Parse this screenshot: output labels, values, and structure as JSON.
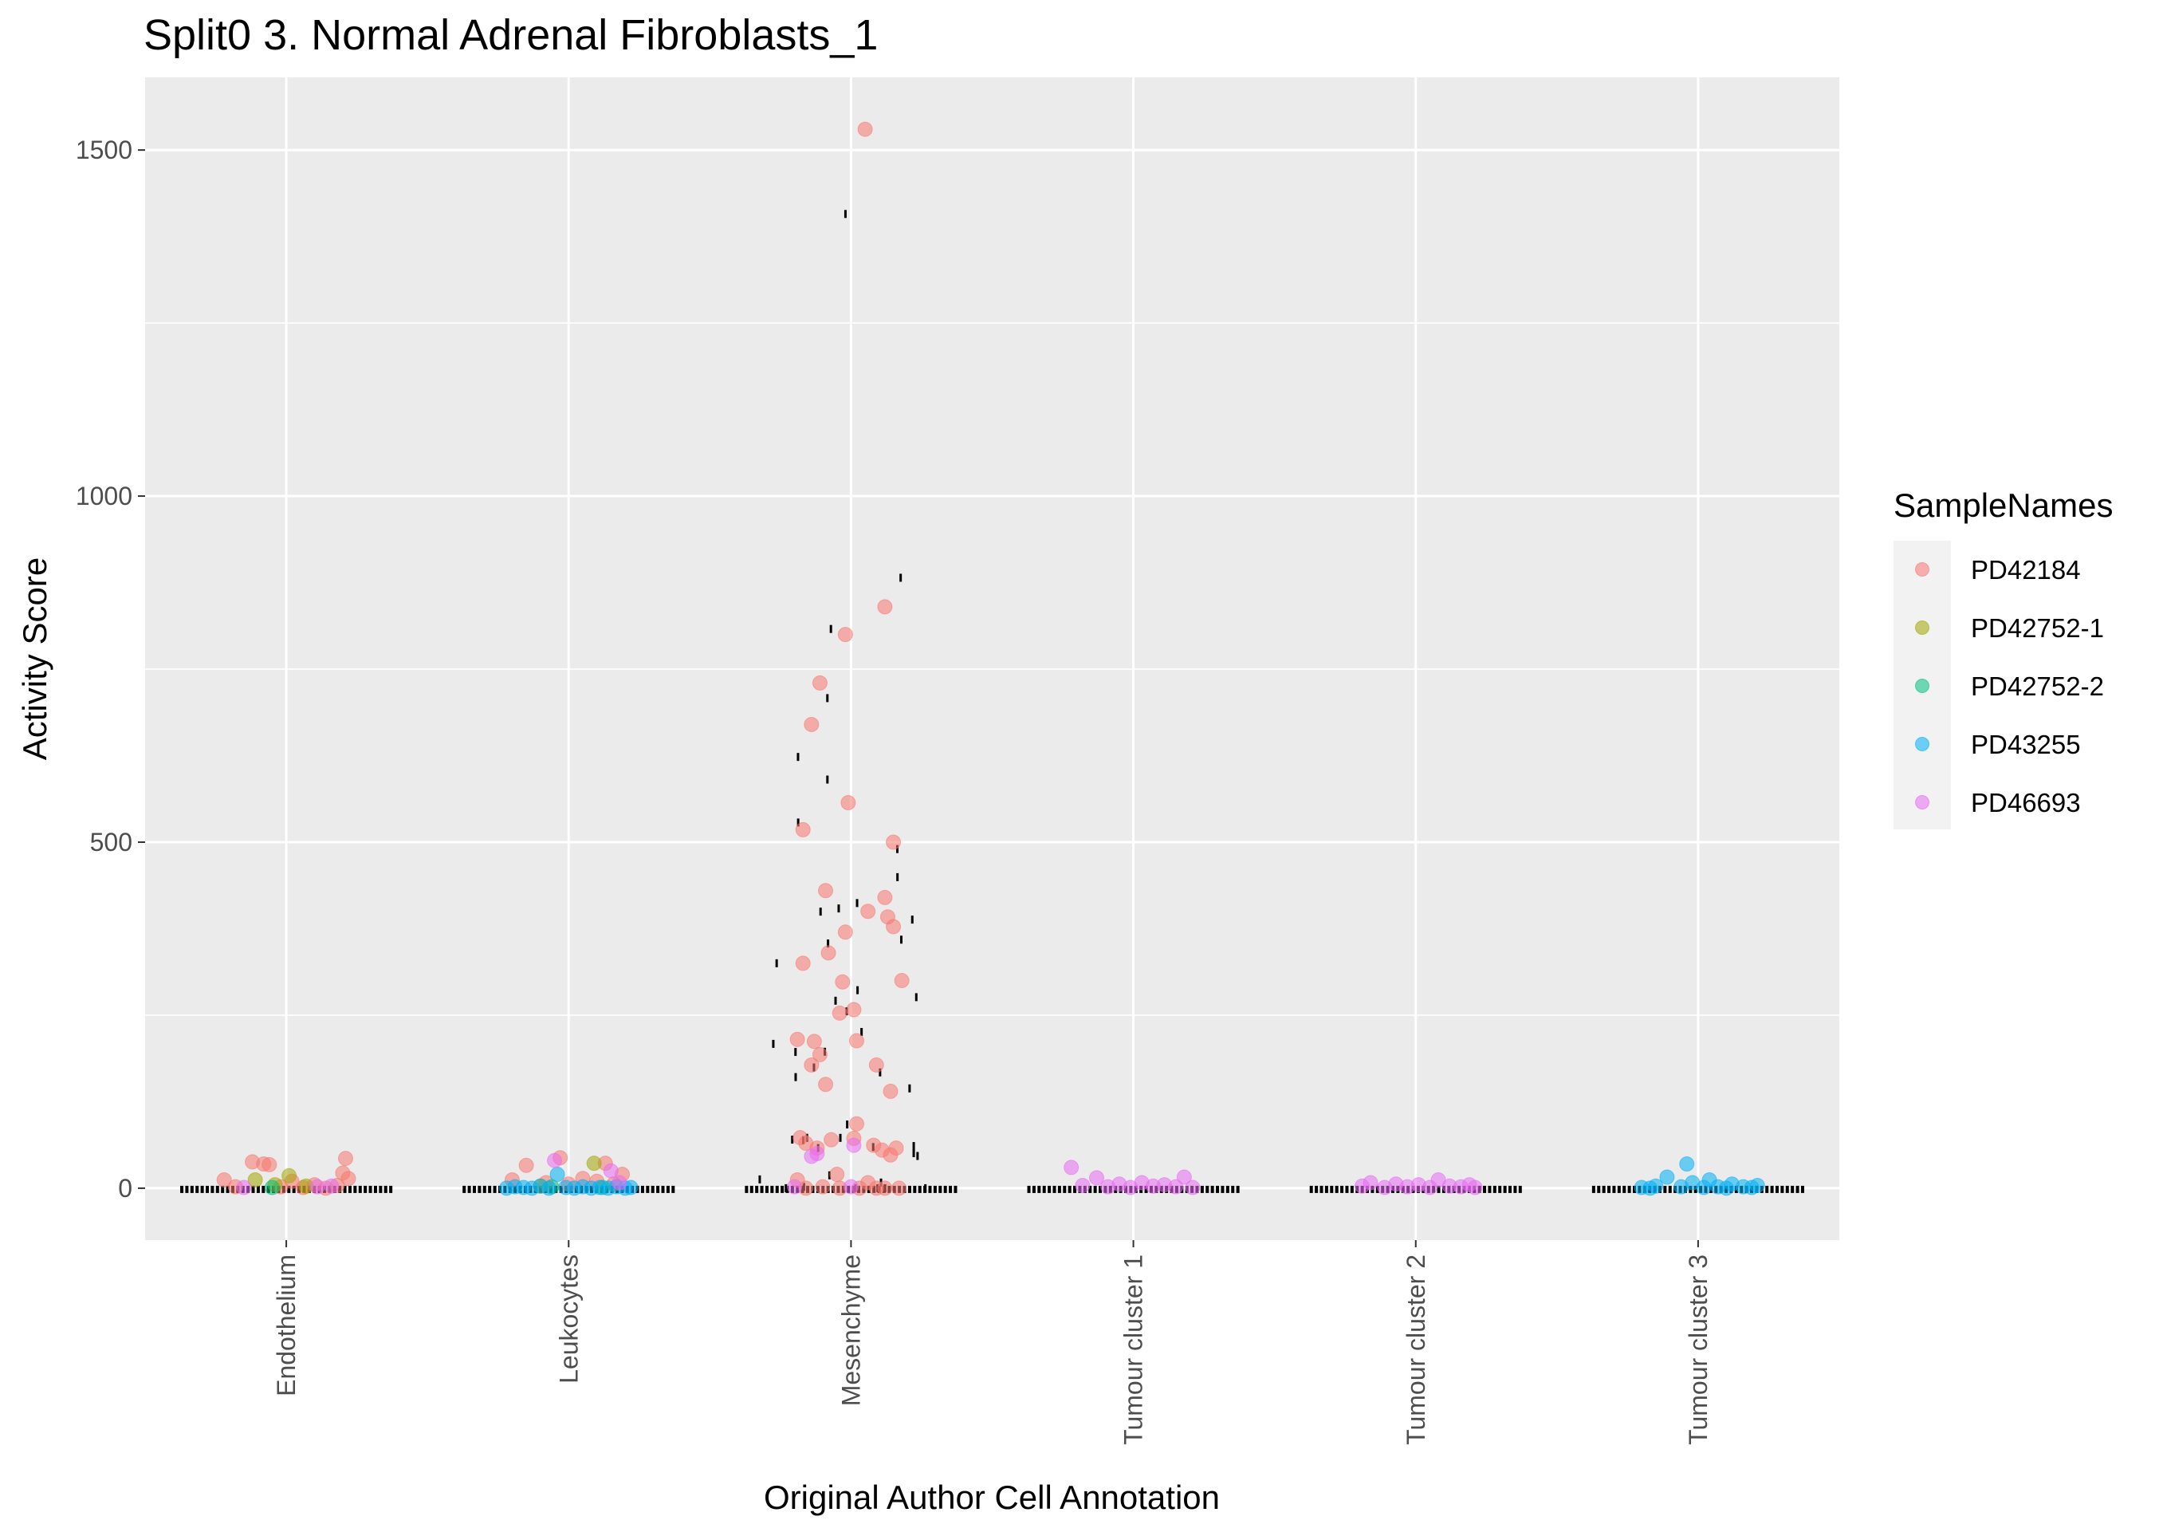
{
  "chart_data": {
    "type": "scatter",
    "title": "Split0 3. Normal Adrenal Fibroblasts_1",
    "xlabel": "Original Author Cell Annotation",
    "ylabel": "Activity Score",
    "categories": [
      "Endothelium",
      "Leukocytes",
      "Mesenchyme",
      "Tumour cluster 1",
      "Tumour cluster 2",
      "Tumour cluster 3"
    ],
    "ylim": [
      -75,
      1605
    ],
    "yticks": [
      0,
      500,
      1000,
      1500
    ],
    "grid": true,
    "legend": {
      "title": "SampleNames",
      "placement": "right",
      "entries": [
        "PD42184",
        "PD42752-1",
        "PD42752-2",
        "PD43255",
        "PD46693"
      ]
    },
    "colors": {
      "PD42184": "#F8766D",
      "PD42752-1": "#A3A500",
      "PD42752-2": "#00BF7D",
      "PD43255": "#00B0F6",
      "PD46693": "#E76BF3",
      "panel_background": "#EBEBEB",
      "grid": "#FFFFFF"
    },
    "series": [
      {
        "name": "PD42184",
        "points": [
          [
            "Endothelium",
            -0.22,
            12
          ],
          [
            "Endothelium",
            -0.12,
            38
          ],
          [
            "Endothelium",
            -0.08,
            35
          ],
          [
            "Endothelium",
            -0.06,
            34
          ],
          [
            "Endothelium",
            0.02,
            10
          ],
          [
            "Endothelium",
            0.1,
            5
          ],
          [
            "Endothelium",
            0.18,
            4
          ],
          [
            "Endothelium",
            0.21,
            43
          ],
          [
            "Endothelium",
            0.2,
            22
          ],
          [
            "Endothelium",
            0.22,
            14
          ],
          [
            "Endothelium",
            -0.18,
            2
          ],
          [
            "Endothelium",
            -0.02,
            2
          ],
          [
            "Endothelium",
            0.06,
            1
          ],
          [
            "Endothelium",
            0.14,
            0
          ],
          [
            "Leukocytes",
            -0.15,
            33
          ],
          [
            "Leukocytes",
            -0.03,
            44
          ],
          [
            "Leukocytes",
            0.13,
            36
          ],
          [
            "Leukocytes",
            0.19,
            20
          ],
          [
            "Leukocytes",
            0.05,
            14
          ],
          [
            "Leukocytes",
            -0.2,
            12
          ],
          [
            "Leukocytes",
            -0.08,
            8
          ],
          [
            "Leukocytes",
            0.1,
            10
          ],
          [
            "Leukocytes",
            0.0,
            6
          ],
          [
            "Leukocytes",
            0.16,
            6
          ],
          [
            "Mesenchyme",
            0.05,
            1530
          ],
          [
            "Mesenchyme",
            0.12,
            840
          ],
          [
            "Mesenchyme",
            -0.02,
            800
          ],
          [
            "Mesenchyme",
            -0.11,
            730
          ],
          [
            "Mesenchyme",
            -0.14,
            670
          ],
          [
            "Mesenchyme",
            -0.01,
            557
          ],
          [
            "Mesenchyme",
            -0.17,
            518
          ],
          [
            "Mesenchyme",
            0.15,
            500
          ],
          [
            "Mesenchyme",
            -0.09,
            430
          ],
          [
            "Mesenchyme",
            0.12,
            420
          ],
          [
            "Mesenchyme",
            0.06,
            400
          ],
          [
            "Mesenchyme",
            0.13,
            392
          ],
          [
            "Mesenchyme",
            0.15,
            378
          ],
          [
            "Mesenchyme",
            -0.02,
            370
          ],
          [
            "Mesenchyme",
            -0.08,
            340
          ],
          [
            "Mesenchyme",
            -0.17,
            325
          ],
          [
            "Mesenchyme",
            -0.03,
            298
          ],
          [
            "Mesenchyme",
            0.18,
            300
          ],
          [
            "Mesenchyme",
            0.01,
            258
          ],
          [
            "Mesenchyme",
            -0.04,
            253
          ],
          [
            "Mesenchyme",
            -0.19,
            215
          ],
          [
            "Mesenchyme",
            -0.13,
            212
          ],
          [
            "Mesenchyme",
            0.02,
            213
          ],
          [
            "Mesenchyme",
            -0.11,
            193
          ],
          [
            "Mesenchyme",
            -0.14,
            178
          ],
          [
            "Mesenchyme",
            0.09,
            178
          ],
          [
            "Mesenchyme",
            -0.09,
            150
          ],
          [
            "Mesenchyme",
            0.14,
            140
          ],
          [
            "Mesenchyme",
            0.02,
            93
          ],
          [
            "Mesenchyme",
            -0.18,
            73
          ],
          [
            "Mesenchyme",
            -0.16,
            65
          ],
          [
            "Mesenchyme",
            -0.07,
            70
          ],
          [
            "Mesenchyme",
            -0.12,
            58
          ],
          [
            "Mesenchyme",
            0.08,
            62
          ],
          [
            "Mesenchyme",
            0.11,
            55
          ],
          [
            "Mesenchyme",
            0.16,
            58
          ],
          [
            "Mesenchyme",
            0.01,
            72
          ],
          [
            "Mesenchyme",
            0.14,
            48
          ],
          [
            "Mesenchyme",
            -0.05,
            20
          ],
          [
            "Mesenchyme",
            -0.19,
            12
          ],
          [
            "Mesenchyme",
            0.06,
            8
          ],
          [
            "Mesenchyme",
            -0.1,
            2
          ],
          [
            "Mesenchyme",
            -0.04,
            0
          ],
          [
            "Mesenchyme",
            0.09,
            0
          ],
          [
            "Mesenchyme",
            0.12,
            0
          ],
          [
            "Mesenchyme",
            0.17,
            0
          ],
          [
            "Mesenchyme",
            -0.16,
            0
          ],
          [
            "Mesenchyme",
            0.03,
            0
          ]
        ]
      },
      {
        "name": "PD42752-1",
        "points": [
          [
            "Endothelium",
            0.01,
            18
          ],
          [
            "Endothelium",
            -0.11,
            12
          ],
          [
            "Endothelium",
            -0.04,
            5
          ],
          [
            "Endothelium",
            0.07,
            3
          ],
          [
            "Leukocytes",
            0.09,
            36
          ],
          [
            "Leukocytes",
            -0.1,
            3
          ]
        ]
      },
      {
        "name": "PD42752-2",
        "points": [
          [
            "Endothelium",
            -0.05,
            1
          ],
          [
            "Leukocytes",
            -0.06,
            2
          ],
          [
            "Leukocytes",
            0.12,
            1
          ]
        ]
      },
      {
        "name": "PD43255",
        "points": [
          [
            "Leukocytes",
            -0.22,
            0
          ],
          [
            "Leukocytes",
            -0.19,
            2
          ],
          [
            "Leukocytes",
            -0.16,
            1
          ],
          [
            "Leukocytes",
            -0.13,
            0
          ],
          [
            "Leukocytes",
            -0.1,
            3
          ],
          [
            "Leukocytes",
            -0.07,
            0
          ],
          [
            "Leukocytes",
            -0.04,
            20
          ],
          [
            "Leukocytes",
            -0.01,
            1
          ],
          [
            "Leukocytes",
            0.02,
            0
          ],
          [
            "Leukocytes",
            0.05,
            2
          ],
          [
            "Leukocytes",
            0.08,
            0
          ],
          [
            "Leukocytes",
            0.11,
            1
          ],
          [
            "Leukocytes",
            0.14,
            0
          ],
          [
            "Leukocytes",
            0.17,
            2
          ],
          [
            "Leukocytes",
            0.2,
            0
          ],
          [
            "Leukocytes",
            0.22,
            1
          ],
          [
            "Tumour cluster 3",
            -0.2,
            1
          ],
          [
            "Tumour cluster 3",
            -0.15,
            3
          ],
          [
            "Tumour cluster 3",
            -0.11,
            16
          ],
          [
            "Tumour cluster 3",
            -0.06,
            2
          ],
          [
            "Tumour cluster 3",
            -0.04,
            35
          ],
          [
            "Tumour cluster 3",
            -0.02,
            8
          ],
          [
            "Tumour cluster 3",
            0.02,
            1
          ],
          [
            "Tumour cluster 3",
            0.04,
            12
          ],
          [
            "Tumour cluster 3",
            0.07,
            2
          ],
          [
            "Tumour cluster 3",
            0.1,
            0
          ],
          [
            "Tumour cluster 3",
            0.12,
            6
          ],
          [
            "Tumour cluster 3",
            0.16,
            2
          ],
          [
            "Tumour cluster 3",
            0.19,
            1
          ],
          [
            "Tumour cluster 3",
            0.21,
            4
          ],
          [
            "Tumour cluster 3",
            -0.17,
            0
          ]
        ]
      },
      {
        "name": "PD46693",
        "points": [
          [
            "Endothelium",
            -0.15,
            1
          ],
          [
            "Endothelium",
            0.11,
            2
          ],
          [
            "Endothelium",
            0.16,
            3
          ],
          [
            "Leukocytes",
            -0.05,
            40
          ],
          [
            "Leukocytes",
            0.15,
            25
          ],
          [
            "Leukocytes",
            0.18,
            8
          ],
          [
            "Mesenchyme",
            -0.12,
            50
          ],
          [
            "Mesenchyme",
            -0.14,
            46
          ],
          [
            "Mesenchyme",
            0.01,
            62
          ],
          [
            "Mesenchyme",
            -0.2,
            2
          ],
          [
            "Mesenchyme",
            0.0,
            2
          ],
          [
            "Tumour cluster 1",
            -0.22,
            30
          ],
          [
            "Tumour cluster 1",
            -0.18,
            4
          ],
          [
            "Tumour cluster 1",
            -0.13,
            15
          ],
          [
            "Tumour cluster 1",
            -0.09,
            2
          ],
          [
            "Tumour cluster 1",
            -0.05,
            6
          ],
          [
            "Tumour cluster 1",
            -0.01,
            1
          ],
          [
            "Tumour cluster 1",
            0.03,
            8
          ],
          [
            "Tumour cluster 1",
            0.07,
            3
          ],
          [
            "Tumour cluster 1",
            0.11,
            5
          ],
          [
            "Tumour cluster 1",
            0.15,
            2
          ],
          [
            "Tumour cluster 1",
            0.18,
            16
          ],
          [
            "Tumour cluster 1",
            0.21,
            1
          ],
          [
            "Tumour cluster 2",
            -0.19,
            3
          ],
          [
            "Tumour cluster 2",
            -0.16,
            8
          ],
          [
            "Tumour cluster 2",
            -0.11,
            1
          ],
          [
            "Tumour cluster 2",
            -0.07,
            6
          ],
          [
            "Tumour cluster 2",
            -0.03,
            2
          ],
          [
            "Tumour cluster 2",
            0.01,
            5
          ],
          [
            "Tumour cluster 2",
            0.05,
            1
          ],
          [
            "Tumour cluster 2",
            0.08,
            12
          ],
          [
            "Tumour cluster 2",
            0.12,
            3
          ],
          [
            "Tumour cluster 2",
            0.16,
            2
          ],
          [
            "Tumour cluster 2",
            0.19,
            5
          ],
          [
            "Tumour cluster 2",
            0.21,
            1
          ]
        ]
      }
    ]
  }
}
